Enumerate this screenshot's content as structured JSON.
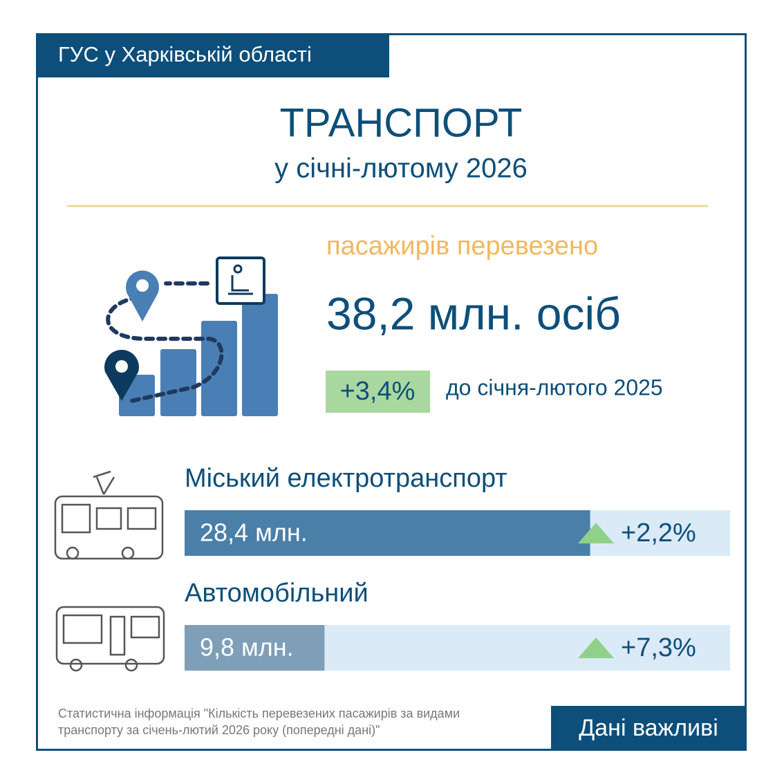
{
  "header": {
    "organization": "ГУС у Харківській області",
    "title": "ТРАНСПОРТ",
    "subtitle": "у січні-лютому 2026"
  },
  "summary": {
    "caption": "пасажирів перевезено",
    "total": {
      "value": 38.2,
      "label": "38,2 млн. осіб"
    },
    "change": "+3,4%",
    "comparison": "до січня-лютого 2025"
  },
  "rows": [
    {
      "name": "Міський електротранспорт",
      "value": 28.4,
      "value_label": "28,4 млн.",
      "change": "+2,2%",
      "color": "#4a7fa8"
    },
    {
      "name": "Автомобільний",
      "value": 9.8,
      "value_label": "9,8 млн.",
      "change": "+7,3%",
      "color": "#7f9fb8"
    }
  ],
  "footer": {
    "source": [
      "Статистична інформація \"Кількість перевезених пасажирів за видами",
      "транспорту за січень-лютий 2026 року (попередні дані)\""
    ],
    "tag": "Дані важливі"
  }
}
